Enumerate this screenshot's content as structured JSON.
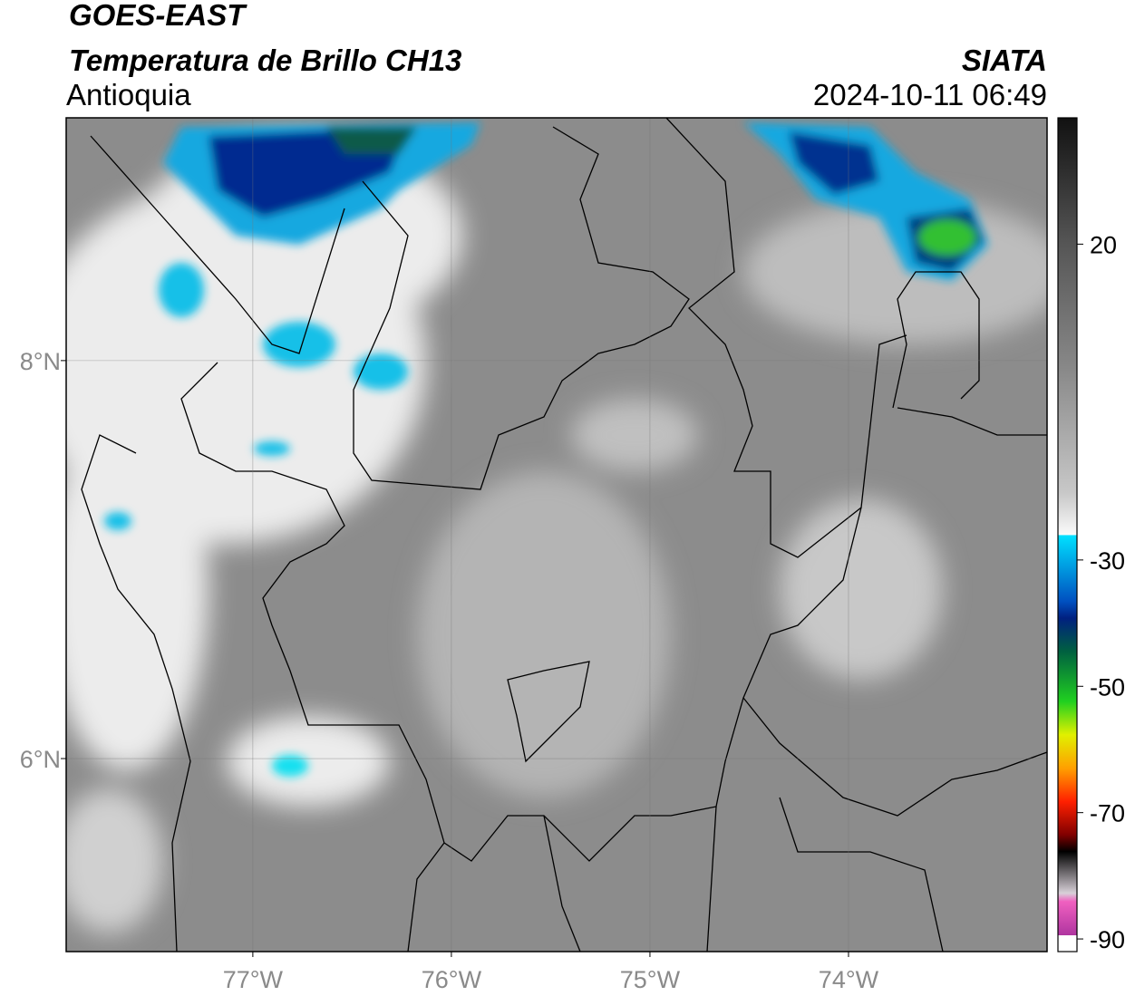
{
  "header": {
    "title": "GOES-EAST",
    "subtitle": "Temperatura de Brillo CH13",
    "region": "Antioquia",
    "agency": "SIATA",
    "datetime": "2024-10-11 06:49"
  },
  "map": {
    "xlim": [
      -77.94,
      -73.0
    ],
    "ylim": [
      5.03,
      9.22
    ],
    "xticks": [
      {
        "value": -77,
        "label": "77°W"
      },
      {
        "value": -76,
        "label": "76°W"
      },
      {
        "value": -75,
        "label": "75°W"
      },
      {
        "value": -74,
        "label": "74°W"
      }
    ],
    "yticks": [
      {
        "value": 8,
        "label": "8°N"
      },
      {
        "value": 6,
        "label": "6°N"
      }
    ]
  },
  "colorbar": {
    "lim": [
      -92,
      40
    ],
    "ticks": [
      20,
      -30,
      -50,
      -70,
      -90
    ]
  }
}
